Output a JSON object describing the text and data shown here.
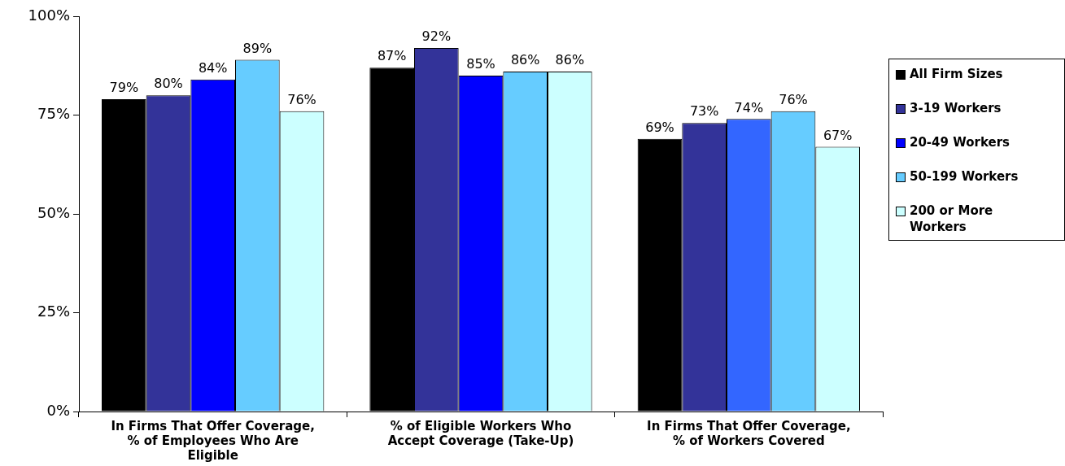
{
  "chart_data": {
    "type": "bar",
    "categories": [
      "In Firms That Offer Coverage, % of Employees Who Are Eligible",
      "% of Eligible Workers Who Accept Coverage (Take-Up)",
      "In Firms That Offer Coverage, % of Workers Covered"
    ],
    "series": [
      {
        "name": "All Firm Sizes",
        "color": "#000000",
        "values": [
          79,
          87,
          69
        ],
        "value_labels": [
          "79%",
          "87%",
          "69%"
        ]
      },
      {
        "name": "3-19 Workers",
        "color": "#333399",
        "values": [
          80,
          92,
          73
        ],
        "value_labels": [
          "80%",
          "92%",
          "73%"
        ]
      },
      {
        "name": "20-49 Workers",
        "color": "#0000ff",
        "colors": [
          "#0000ff",
          "#0000ff",
          "#3366ff"
        ],
        "values": [
          84,
          85,
          74
        ],
        "value_labels": [
          "84%",
          "85%",
          "74%"
        ]
      },
      {
        "name": "50-199 Workers",
        "color": "#66ccff",
        "values": [
          89,
          86,
          76
        ],
        "value_labels": [
          "89%",
          "86%",
          "76%"
        ]
      },
      {
        "name": "200 or More Workers",
        "color": "#ccffff",
        "values": [
          76,
          86,
          67
        ],
        "value_labels": [
          "76%",
          "86%",
          "67%"
        ]
      }
    ],
    "ylim": [
      0,
      100
    ],
    "yticks": [
      {
        "value": 0,
        "label": "0%"
      },
      {
        "value": 25,
        "label": "25%"
      },
      {
        "value": 50,
        "label": "50%"
      },
      {
        "value": 75,
        "label": "75%"
      },
      {
        "value": 100,
        "label": "100%"
      }
    ],
    "grid": false,
    "legend": "right"
  }
}
